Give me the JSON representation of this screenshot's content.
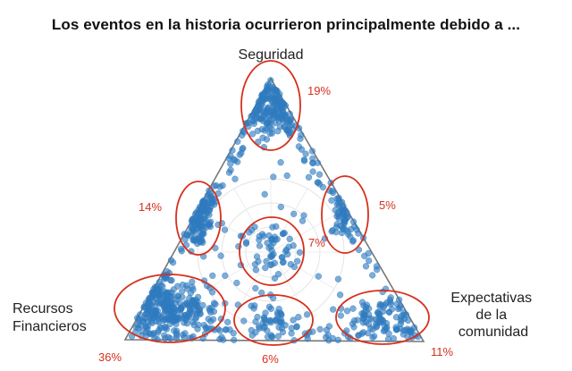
{
  "title": "Los eventos en la historia ocurrieron principalmente debido a ...",
  "chart_data": {
    "type": "scatter",
    "subtype": "ternary",
    "vertices": {
      "top": [
        "Seguridad"
      ],
      "left": [
        "Recursos",
        "Financieros"
      ],
      "right": [
        "Expectativas",
        "de la",
        "comunidad"
      ]
    },
    "clusters": [
      {
        "region": "top vertex (Seguridad)",
        "percent": "19%",
        "value": 19
      },
      {
        "region": "left vertex (Recursos Financieros)",
        "percent": "36%",
        "value": 36
      },
      {
        "region": "right vertex (Expectativas de la comunidad)",
        "percent": "11%",
        "value": 11
      },
      {
        "region": "left edge (Seguridad–Recursos Financieros)",
        "percent": "14%",
        "value": 14
      },
      {
        "region": "right edge (Seguridad–Expectativas)",
        "percent": "5%",
        "value": 5
      },
      {
        "region": "bottom edge (Recursos Financieros–Expectativas)",
        "percent": "6%",
        "value": 6
      },
      {
        "region": "center (balanced)",
        "percent": "7%",
        "value": 7
      }
    ],
    "point_color": "#2f7bbf",
    "highlight_color": "#d6301d",
    "grid": true
  }
}
